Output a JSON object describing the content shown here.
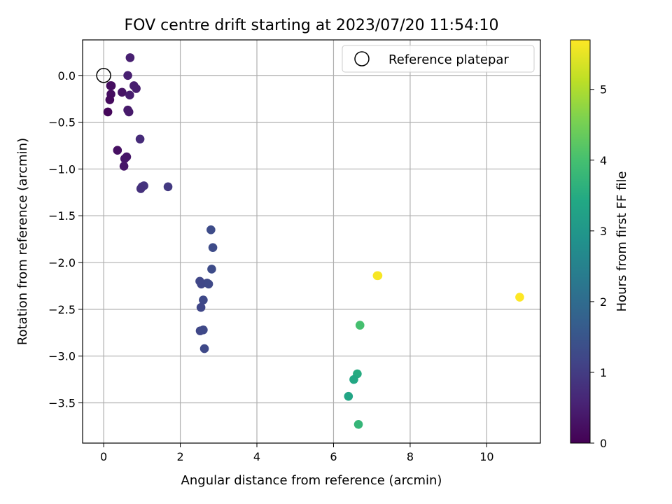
{
  "chart_data": {
    "type": "scatter",
    "title": "FOV centre drift starting at 2023/07/20 11:54:10",
    "xlabel": "Angular distance from reference (arcmin)",
    "ylabel": "Rotation from reference (arcmin)",
    "xlim": [
      -0.55,
      11.4
    ],
    "ylim": [
      -3.93,
      0.38
    ],
    "xticks": [
      0,
      2,
      4,
      6,
      8,
      10
    ],
    "yticks": [
      0.0,
      -0.5,
      -1.0,
      -1.5,
      -2.0,
      -2.5,
      -3.0,
      -3.5
    ],
    "xtick_labels": [
      "0",
      "2",
      "4",
      "6",
      "8",
      "10"
    ],
    "ytick_labels": [
      "0.0",
      "−0.5",
      "−1.0",
      "−1.5",
      "−2.0",
      "−2.5",
      "−3.0",
      "−3.5"
    ],
    "grid": true,
    "legend": {
      "label": "Reference platepar",
      "placement": "top-right"
    },
    "reference_point": {
      "x": 0,
      "y": 0
    },
    "colorbar": {
      "label": "Hours from first FF file",
      "colormap": "viridis",
      "range": [
        0,
        5.7
      ],
      "ticks": [
        0,
        1,
        2,
        3,
        4,
        5
      ],
      "tick_labels": [
        "0",
        "1",
        "2",
        "3",
        "4",
        "5"
      ]
    },
    "points": [
      {
        "x": 0.69,
        "y": 0.19,
        "h": 0.5
      },
      {
        "x": 0.63,
        "y": 0.0,
        "h": 0.5
      },
      {
        "x": 0.18,
        "y": -0.11,
        "h": 0.15
      },
      {
        "x": 0.2,
        "y": -0.11,
        "h": 0.2
      },
      {
        "x": 0.79,
        "y": -0.11,
        "h": 0.45
      },
      {
        "x": 0.85,
        "y": -0.14,
        "h": 0.45
      },
      {
        "x": 0.48,
        "y": -0.18,
        "h": 0.3
      },
      {
        "x": 0.19,
        "y": -0.2,
        "h": 0.2
      },
      {
        "x": 0.68,
        "y": -0.21,
        "h": 0.45
      },
      {
        "x": 0.16,
        "y": -0.26,
        "h": 0.15
      },
      {
        "x": 0.63,
        "y": -0.37,
        "h": 0.4
      },
      {
        "x": 0.11,
        "y": -0.39,
        "h": 0.1
      },
      {
        "x": 0.66,
        "y": -0.39,
        "h": 0.4
      },
      {
        "x": 0.95,
        "y": -0.68,
        "h": 0.7
      },
      {
        "x": 0.36,
        "y": -0.8,
        "h": 0.25
      },
      {
        "x": 0.6,
        "y": -0.87,
        "h": 0.35
      },
      {
        "x": 0.55,
        "y": -0.89,
        "h": 0.35
      },
      {
        "x": 0.53,
        "y": -0.97,
        "h": 0.35
      },
      {
        "x": 1.05,
        "y": -1.18,
        "h": 0.85
      },
      {
        "x": 1.0,
        "y": -1.19,
        "h": 0.85
      },
      {
        "x": 1.68,
        "y": -1.19,
        "h": 0.95
      },
      {
        "x": 0.97,
        "y": -1.21,
        "h": 0.8
      },
      {
        "x": 2.8,
        "y": -1.65,
        "h": 1.3
      },
      {
        "x": 2.85,
        "y": -1.84,
        "h": 1.3
      },
      {
        "x": 2.82,
        "y": -2.07,
        "h": 1.3
      },
      {
        "x": 2.51,
        "y": -2.2,
        "h": 1.2
      },
      {
        "x": 2.7,
        "y": -2.22,
        "h": 1.25
      },
      {
        "x": 2.55,
        "y": -2.23,
        "h": 1.2
      },
      {
        "x": 2.74,
        "y": -2.23,
        "h": 1.25
      },
      {
        "x": 2.6,
        "y": -2.4,
        "h": 1.25
      },
      {
        "x": 2.54,
        "y": -2.48,
        "h": 1.2
      },
      {
        "x": 2.52,
        "y": -2.73,
        "h": 1.2
      },
      {
        "x": 2.6,
        "y": -2.72,
        "h": 1.25
      },
      {
        "x": 2.63,
        "y": -2.92,
        "h": 1.25
      },
      {
        "x": 7.16,
        "y": -2.14,
        "h": 5.65
      },
      {
        "x": 7.14,
        "y": -2.14,
        "h": 5.65
      },
      {
        "x": 10.86,
        "y": -2.37,
        "h": 5.7
      },
      {
        "x": 6.69,
        "y": -2.67,
        "h": 4.0
      },
      {
        "x": 6.62,
        "y": -3.19,
        "h": 3.5
      },
      {
        "x": 6.53,
        "y": -3.25,
        "h": 3.4
      },
      {
        "x": 6.39,
        "y": -3.43,
        "h": 3.35
      },
      {
        "x": 6.65,
        "y": -3.73,
        "h": 3.75
      }
    ]
  }
}
